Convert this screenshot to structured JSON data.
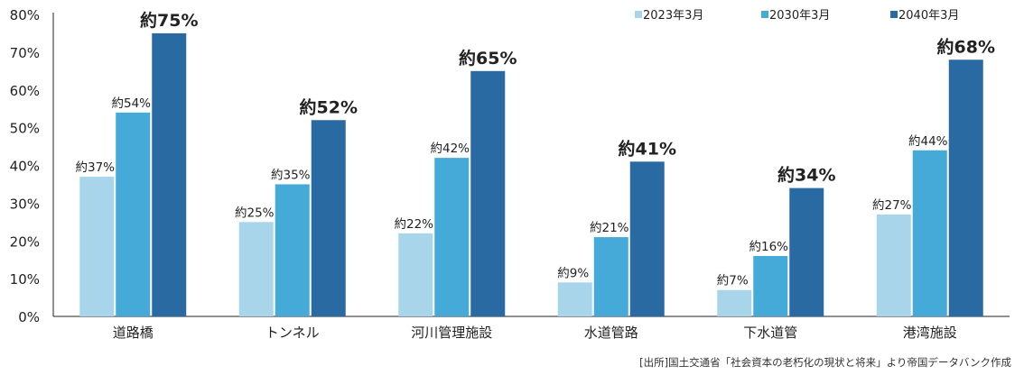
{
  "chart_data": {
    "type": "bar",
    "categories": [
      "道路橋",
      "トンネル",
      "河川管理施設",
      "水道管路",
      "下水道管",
      "港湾施設"
    ],
    "series": [
      {
        "name": "2023年3月",
        "values": [
          37,
          25,
          22,
          9,
          7,
          27
        ],
        "labels": [
          "約37%",
          "約25%",
          "約22%",
          "約9%",
          "約7%",
          "約27%"
        ],
        "color": "#a8d5ea"
      },
      {
        "name": "2030年3月",
        "values": [
          54,
          35,
          42,
          21,
          16,
          44
        ],
        "labels": [
          "約54%",
          "約35%",
          "約42%",
          "約21%",
          "約16%",
          "約44%"
        ],
        "color": "#45aad8"
      },
      {
        "name": "2040年3月",
        "values": [
          75,
          52,
          65,
          41,
          34,
          68
        ],
        "labels": [
          "約75%",
          "約52%",
          "約65%",
          "約41%",
          "約34%",
          "約68%"
        ],
        "color": "#2a6aa3"
      }
    ],
    "ylim": [
      0,
      80
    ],
    "yticks": [
      "0%",
      "10%",
      "20%",
      "30%",
      "40%",
      "50%",
      "60%",
      "70%",
      "80%"
    ],
    "grid": false,
    "legend_position": "top-right"
  },
  "source_note": "[出所]国土交通省「社会資本の老朽化の現状と将来」より帝国データバンク作成"
}
